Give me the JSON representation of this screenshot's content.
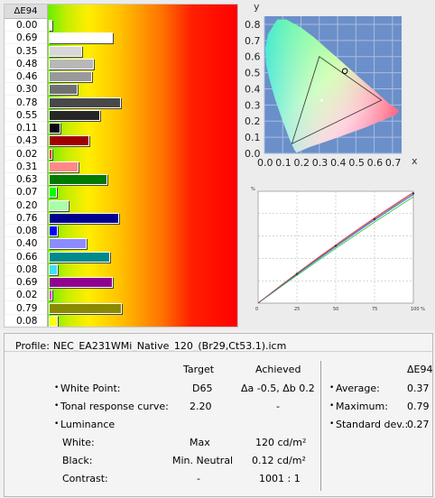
{
  "de_panel": {
    "header": "ΔE94",
    "rows": [
      {
        "value": "0.00",
        "fill": 0.0,
        "color": "#ffffff"
      },
      {
        "value": "0.69",
        "fill": 0.69,
        "color": "#ffffff"
      },
      {
        "value": "0.35",
        "fill": 0.35,
        "color": "#d8d8d8"
      },
      {
        "value": "0.48",
        "fill": 0.48,
        "color": "#b8b8b8"
      },
      {
        "value": "0.46",
        "fill": 0.46,
        "color": "#999999"
      },
      {
        "value": "0.30",
        "fill": 0.3,
        "color": "#707070"
      },
      {
        "value": "0.78",
        "fill": 0.78,
        "color": "#484848"
      },
      {
        "value": "0.55",
        "fill": 0.55,
        "color": "#262626"
      },
      {
        "value": "0.11",
        "fill": 0.11,
        "color": "#0a0a0a"
      },
      {
        "value": "0.43",
        "fill": 0.43,
        "color": "#a00000"
      },
      {
        "value": "0.02",
        "fill": 0.02,
        "color": "#ff0000"
      },
      {
        "value": "0.31",
        "fill": 0.31,
        "color": "#ff8888"
      },
      {
        "value": "0.63",
        "fill": 0.63,
        "color": "#007a00"
      },
      {
        "value": "0.07",
        "fill": 0.07,
        "color": "#00ff00"
      },
      {
        "value": "0.20",
        "fill": 0.2,
        "color": "#a8ffa8"
      },
      {
        "value": "0.76",
        "fill": 0.76,
        "color": "#000090"
      },
      {
        "value": "0.08",
        "fill": 0.08,
        "color": "#0000ff"
      },
      {
        "value": "0.40",
        "fill": 0.4,
        "color": "#8c8cff"
      },
      {
        "value": "0.66",
        "fill": 0.66,
        "color": "#008a8a"
      },
      {
        "value": "0.08",
        "fill": 0.08,
        "color": "#40e0ff"
      },
      {
        "value": "0.69",
        "fill": 0.69,
        "color": "#900090"
      },
      {
        "value": "0.02",
        "fill": 0.02,
        "color": "#ff00ff"
      },
      {
        "value": "0.79",
        "fill": 0.79,
        "color": "#8a8a00"
      },
      {
        "value": "0.08",
        "fill": 0.08,
        "color": "#ffff00"
      }
    ]
  },
  "gamut_chart": {
    "x_axis_label": "x",
    "y_axis_label": "y",
    "x_ticks": [
      "0.0",
      "0.1",
      "0.2",
      "0.3",
      "0.4",
      "0.5",
      "0.6",
      "0.7"
    ],
    "y_ticks": [
      "0.8",
      "0.7",
      "0.6",
      "0.5",
      "0.4",
      "0.3",
      "0.2",
      "0.1",
      "0.0"
    ],
    "triangle": [
      [
        0.3,
        0.6
      ],
      [
        0.64,
        0.33
      ],
      [
        0.15,
        0.06
      ]
    ],
    "white_point": [
      0.313,
      0.329
    ],
    "marker": [
      0.44,
      0.51
    ]
  },
  "tone_chart": {
    "y_unit": "%",
    "x_ticks": [
      "0",
      "25",
      "50",
      "75",
      "100 %"
    ]
  },
  "profile": {
    "label": "Profile:",
    "value": "NEC_EA231WMi_Native_120_(Br29,Ct53.1).icm"
  },
  "summary": {
    "col_target": "Target",
    "col_achieved": "Achieved",
    "col_de": "ΔE94",
    "rows": [
      {
        "bullet": "•",
        "label": "White Point:",
        "target": "D65",
        "achieved": "Δa -0.5, Δb 0.2"
      },
      {
        "bullet": "•",
        "label": "Tonal response curve:",
        "target": "2.20",
        "achieved": "-"
      },
      {
        "bullet": "•",
        "label": "Luminance",
        "target": "",
        "achieved": ""
      }
    ],
    "luminance_rows": [
      {
        "label": "White:",
        "target": "Max",
        "achieved": "120 cd/m²"
      },
      {
        "label": "Black:",
        "target": "Min. Neutral",
        "achieved": "0.12 cd/m²"
      },
      {
        "label": "Contrast:",
        "target": "-",
        "achieved": "1001 : 1"
      }
    ],
    "de_stats": [
      {
        "bullet": "•",
        "label": "Average:",
        "value": "0.37"
      },
      {
        "bullet": "•",
        "label": "Maximum:",
        "value": "0.79"
      },
      {
        "bullet": "•",
        "label": "Standard dev.:",
        "value": "0.27"
      }
    ]
  }
}
